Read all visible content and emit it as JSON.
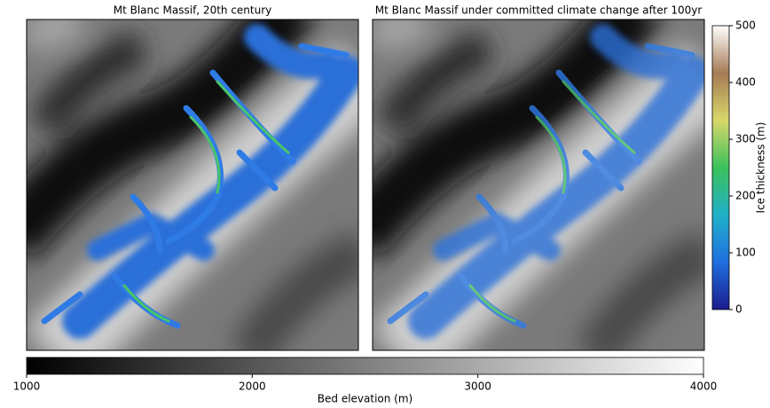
{
  "chart_data": [
    {
      "type": "map",
      "title": "Mt Blanc Massif, 20th century"
    },
    {
      "type": "map",
      "title": "Mt Blanc Massif under committed climate change after 100yr"
    },
    {
      "type": "colorbar",
      "label": "Ice thickness (m)",
      "ylim": [
        0,
        500
      ],
      "yticks": [
        0,
        100,
        200,
        300,
        400,
        500
      ],
      "colors": [
        "#1b1b8c",
        "#1f6fe0",
        "#20b0c8",
        "#3bc15a",
        "#d8d86a",
        "#a57a55",
        "#ffffff"
      ]
    },
    {
      "type": "colorbar",
      "label": "Bed elevation (m)",
      "xlim": [
        1000,
        4000
      ],
      "xticks": [
        1000,
        2000,
        3000,
        4000
      ],
      "colors": [
        "#000000",
        "#ffffff"
      ]
    }
  ]
}
